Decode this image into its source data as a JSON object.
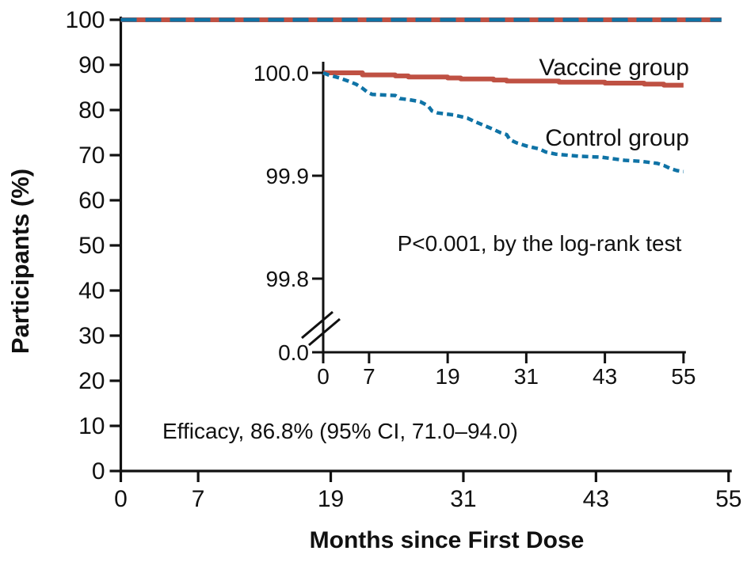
{
  "chart_data": {
    "type": "line",
    "title": "",
    "xlabel": "Months since First Dose",
    "ylabel": "Participants (%)",
    "grid": false,
    "legend_position": "inline-labels",
    "axis_color": "#111111",
    "main_plot": {
      "xlim": [
        0,
        55
      ],
      "ylim": [
        0,
        100
      ],
      "x_ticks": [
        0,
        7,
        19,
        31,
        43,
        55
      ],
      "y_ticks": [
        100,
        90,
        80,
        70,
        60,
        50,
        40,
        30,
        20,
        10,
        0
      ],
      "annotation": "Efficacy, 86.8% (95% CI, 71.0–94.0)",
      "series": [
        {
          "name": "Vaccine group",
          "style": "solid",
          "color": "#bf5143",
          "points": [
            [
              0,
              100
            ],
            [
              55,
              100
            ]
          ]
        },
        {
          "name": "Control group",
          "style": "dashed",
          "color": "#0f73a6",
          "points": [
            [
              0,
              100
            ],
            [
              55,
              100
            ]
          ]
        }
      ]
    },
    "inset_plot": {
      "xlim": [
        0,
        55
      ],
      "x_ticks": [
        0,
        7,
        19,
        31,
        43,
        55
      ],
      "y_tick_values": [
        100.0,
        99.9,
        99.8
      ],
      "y_tick_labels": [
        "100.0",
        "99.9",
        "99.8"
      ],
      "axis_break": true,
      "baseline_tick_label": "0.0",
      "annotation": "P<0.001, by the log-rank test",
      "series": [
        {
          "name": "Vaccine group",
          "style": "solid",
          "color": "#bf5143",
          "points": [
            [
              0,
              100.0
            ],
            [
              6,
              100.0
            ],
            [
              6,
              99.998
            ],
            [
              11,
              99.998
            ],
            [
              11,
              99.997
            ],
            [
              13,
              99.997
            ],
            [
              13,
              99.996
            ],
            [
              19,
              99.996
            ],
            [
              19,
              99.995
            ],
            [
              21,
              99.995
            ],
            [
              21,
              99.994
            ],
            [
              26,
              99.994
            ],
            [
              26,
              99.993
            ],
            [
              28,
              99.993
            ],
            [
              28,
              99.992
            ],
            [
              36,
              99.992
            ],
            [
              36,
              99.991
            ],
            [
              43,
              99.991
            ],
            [
              43,
              99.99
            ],
            [
              49,
              99.99
            ],
            [
              49,
              99.989
            ],
            [
              52,
              99.989
            ],
            [
              52,
              99.988
            ],
            [
              55,
              99.988
            ]
          ]
        },
        {
          "name": "Control group",
          "style": "dashed",
          "color": "#0f73a6",
          "points": [
            [
              0,
              100.0
            ],
            [
              0.8,
              99.998
            ],
            [
              2.5,
              99.995
            ],
            [
              3.8,
              99.992
            ],
            [
              5,
              99.989
            ],
            [
              6,
              99.985
            ],
            [
              6.8,
              99.981
            ],
            [
              7.5,
              99.979
            ],
            [
              11,
              99.978
            ],
            [
              11.7,
              99.975
            ],
            [
              13,
              99.974
            ],
            [
              14.8,
              99.972
            ],
            [
              16,
              99.968
            ],
            [
              16.6,
              99.963
            ],
            [
              17.5,
              99.961
            ],
            [
              20,
              99.959
            ],
            [
              22,
              99.956
            ],
            [
              23,
              99.953
            ],
            [
              24.5,
              99.949
            ],
            [
              26,
              99.945
            ],
            [
              27,
              99.942
            ],
            [
              28,
              99.94
            ],
            [
              28.5,
              99.935
            ],
            [
              29.5,
              99.932
            ],
            [
              31,
              99.929
            ],
            [
              33,
              99.926
            ],
            [
              34,
              99.923
            ],
            [
              35.5,
              99.921
            ],
            [
              39,
              99.919
            ],
            [
              42.5,
              99.918
            ],
            [
              46,
              99.915
            ],
            [
              48.5,
              99.914
            ],
            [
              51,
              99.912
            ],
            [
              52,
              99.91
            ],
            [
              53,
              99.907
            ],
            [
              54,
              99.905
            ],
            [
              55,
              99.904
            ]
          ]
        }
      ]
    }
  }
}
